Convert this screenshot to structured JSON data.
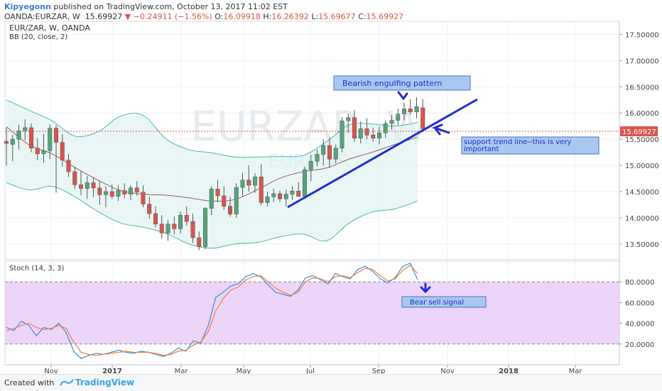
{
  "header": {
    "author": "Kipyegonn",
    "published": "published on TradingView.com, October 13, 2017 11:02 EST",
    "symbol": "OANDA:EURZAR, W",
    "last": "15.69927",
    "change": "−0.24911 (−1.56%)",
    "o_label": "O:",
    "o_value": "16.09918",
    "h_label": "H:",
    "h_value": "16.26392",
    "l_label": "L:",
    "l_value": "15.69677",
    "c_label": "C:",
    "c_value": "15.69927"
  },
  "main_panel": {
    "title": "EUR/ZAR, W, OANDA",
    "indicator": "BB (20, close, 2)",
    "watermark_big": "EURZAR, W",
    "watermark_small": "EUR/ZAR",
    "last_price_tag": "15.69927"
  },
  "stoch_panel": {
    "title": "Stoch (14, 3, 3)"
  },
  "annotations": {
    "engulfing": "Bearish engulfing pattern",
    "support_line1": "support trend line--this is very",
    "support_line2": "important",
    "bear_signal": "Bear sell signal"
  },
  "footer": {
    "created_with": "Created with",
    "brand": "TradingView"
  },
  "colors": {
    "up": "#53a57b",
    "down": "#d9544f",
    "bb_band": "#4db6ac",
    "bb_fill": "#e0f2f1",
    "bb_basis": "#9c5b5b",
    "stoch_k": "#3a8fd9",
    "stoch_d": "#f57c3a",
    "stoch_fill": "#e8c9f7",
    "trend_line": "#1f2ecc",
    "annotation_bg": "#a8c8f0"
  },
  "chart_data": [
    {
      "type": "candlestick",
      "title": "EUR/ZAR, W, OANDA",
      "x_ticks": [
        "Nov",
        "2017",
        "Mar",
        "May",
        "Jul",
        "Sep",
        "Nov",
        "2018",
        "Mar"
      ],
      "y_ticks": [
        "13.50000",
        "14.00000",
        "14.50000",
        "15.00000",
        "15.50000",
        "16.00000",
        "16.50000",
        "17.00000",
        "17.50000"
      ],
      "ylim": [
        13.2,
        17.75
      ],
      "grid": true,
      "candles": [
        [
          15.46,
          15.72,
          15.0,
          15.42
        ],
        [
          15.4,
          15.58,
          15.08,
          15.5
        ],
        [
          15.5,
          15.78,
          15.3,
          15.66
        ],
        [
          15.66,
          15.88,
          15.48,
          15.72
        ],
        [
          15.72,
          15.8,
          15.25,
          15.33
        ],
        [
          15.33,
          15.52,
          15.1,
          15.22
        ],
        [
          15.22,
          15.6,
          15.05,
          15.28
        ],
        [
          15.28,
          15.78,
          15.12,
          15.71
        ],
        [
          15.71,
          15.77,
          14.48,
          15.44
        ],
        [
          15.44,
          15.6,
          14.98,
          15.1
        ],
        [
          15.1,
          15.22,
          14.78,
          14.88
        ],
        [
          14.88,
          14.98,
          14.55,
          14.63
        ],
        [
          14.63,
          14.9,
          14.43,
          14.56
        ],
        [
          14.56,
          14.8,
          14.36,
          14.67
        ],
        [
          14.67,
          14.78,
          14.4,
          14.57
        ],
        [
          14.57,
          14.7,
          14.25,
          14.44
        ],
        [
          14.44,
          14.6,
          14.2,
          14.5
        ],
        [
          14.5,
          14.64,
          14.36,
          14.41
        ],
        [
          14.41,
          14.62,
          14.32,
          14.52
        ],
        [
          14.52,
          14.66,
          14.38,
          14.45
        ],
        [
          14.45,
          14.62,
          14.34,
          14.57
        ],
        [
          14.57,
          14.7,
          14.42,
          14.49
        ],
        [
          14.49,
          14.62,
          14.2,
          14.26
        ],
        [
          14.26,
          14.4,
          13.98,
          14.08
        ],
        [
          14.08,
          14.22,
          13.82,
          13.88
        ],
        [
          13.88,
          14.05,
          13.6,
          13.71
        ],
        [
          13.71,
          13.96,
          13.56,
          13.88
        ],
        [
          13.88,
          14.02,
          13.68,
          13.79
        ],
        [
          13.79,
          14.12,
          13.7,
          14.05
        ],
        [
          14.05,
          14.22,
          13.85,
          13.93
        ],
        [
          13.93,
          14.08,
          13.52,
          13.62
        ],
        [
          13.62,
          13.74,
          13.38,
          13.45
        ],
        [
          13.45,
          14.2,
          13.4,
          14.18
        ],
        [
          14.18,
          14.6,
          14.05,
          14.55
        ],
        [
          14.55,
          14.72,
          14.3,
          14.42
        ],
        [
          14.42,
          14.6,
          14.15,
          14.22
        ],
        [
          14.22,
          14.4,
          14.02,
          14.07
        ],
        [
          14.07,
          14.66,
          14.0,
          14.58
        ],
        [
          14.58,
          14.86,
          14.4,
          14.72
        ],
        [
          14.72,
          15.0,
          14.5,
          14.62
        ],
        [
          14.62,
          14.85,
          14.48,
          14.78
        ],
        [
          14.78,
          15.02,
          14.24,
          14.29
        ],
        [
          14.29,
          14.5,
          14.22,
          14.4
        ],
        [
          14.4,
          14.56,
          14.3,
          14.46
        ],
        [
          14.46,
          14.52,
          14.3,
          14.36
        ],
        [
          14.36,
          14.54,
          14.22,
          14.45
        ],
        [
          14.45,
          14.6,
          14.34,
          14.51
        ],
        [
          14.51,
          14.68,
          14.4,
          14.41
        ],
        [
          14.41,
          14.98,
          14.36,
          14.92
        ],
        [
          14.92,
          15.2,
          14.7,
          15.08
        ],
        [
          15.08,
          15.3,
          14.98,
          15.21
        ],
        [
          15.21,
          15.5,
          15.0,
          15.38
        ],
        [
          15.38,
          15.52,
          14.95,
          15.12
        ],
        [
          15.12,
          15.4,
          15.04,
          15.33
        ],
        [
          15.33,
          15.92,
          15.25,
          15.85
        ],
        [
          15.85,
          15.98,
          15.62,
          15.91
        ],
        [
          15.91,
          16.06,
          15.45,
          15.52
        ],
        [
          15.52,
          15.84,
          15.42,
          15.7
        ],
        [
          15.7,
          15.9,
          15.5,
          15.58
        ],
        [
          15.58,
          15.72,
          15.45,
          15.52
        ],
        [
          15.52,
          15.74,
          15.4,
          15.62
        ],
        [
          15.62,
          15.86,
          15.52,
          15.8
        ],
        [
          15.8,
          15.96,
          15.68,
          15.86
        ],
        [
          15.86,
          16.08,
          15.76,
          15.98
        ],
        [
          15.98,
          16.2,
          15.86,
          16.08
        ],
        [
          16.08,
          16.26,
          15.96,
          16.02
        ],
        [
          16.02,
          16.3,
          15.9,
          16.12
        ],
        [
          16.09918,
          16.26392,
          15.69677,
          15.69927
        ]
      ],
      "bollinger": {
        "upper": [
          16.25,
          16.05,
          15.85,
          15.56,
          15.64,
          15.94,
          15.95,
          15.5,
          15.3,
          15.24,
          15.16,
          15.16,
          15.17,
          15.19,
          15.45,
          15.77,
          15.79,
          15.75,
          15.82
        ],
        "basis": [
          15.74,
          15.39,
          15.22,
          14.96,
          14.72,
          14.52,
          14.45,
          14.43,
          14.38,
          14.32,
          14.35,
          14.54,
          14.76,
          14.88,
          14.95,
          15.12,
          15.25,
          15.4,
          15.54
        ],
        "lower": [
          14.67,
          14.53,
          14.6,
          14.4,
          14.12,
          13.9,
          13.82,
          13.7,
          13.5,
          13.42,
          13.5,
          13.53,
          13.64,
          13.69,
          13.56,
          13.9,
          14.11,
          14.17,
          14.32
        ]
      }
    },
    {
      "type": "line",
      "title": "Stoch (14, 3, 3)",
      "y_ticks": [
        "20.0000",
        "40.0000",
        "60.0000",
        "80.0000"
      ],
      "ylim": [
        0,
        100
      ],
      "bands": [
        20,
        80
      ],
      "series": [
        {
          "name": "%K",
          "values": [
            36,
            33,
            42,
            38,
            28,
            36,
            34,
            40,
            31,
            13,
            6,
            9,
            11,
            10,
            12,
            14,
            12,
            11,
            13,
            12,
            10,
            8,
            11,
            16,
            13,
            23,
            21,
            38,
            65,
            70,
            76,
            78,
            85,
            88,
            85,
            77,
            70,
            68,
            66,
            72,
            84,
            86,
            82,
            78,
            88,
            85,
            83,
            92,
            95,
            90,
            83,
            79,
            84,
            95,
            98,
            82
          ]
        },
        {
          "name": "%D",
          "values": [
            33,
            35,
            38,
            40,
            36,
            34,
            35,
            38,
            35,
            22,
            12,
            10,
            9,
            10,
            11,
            12,
            13,
            12,
            12,
            12,
            11,
            9,
            10,
            13,
            14,
            19,
            22,
            32,
            52,
            64,
            72,
            75,
            82,
            85,
            86,
            80,
            74,
            70,
            67,
            70,
            80,
            84,
            83,
            80,
            85,
            86,
            84,
            89,
            93,
            92,
            86,
            81,
            83,
            91,
            96,
            88
          ]
        }
      ]
    }
  ]
}
